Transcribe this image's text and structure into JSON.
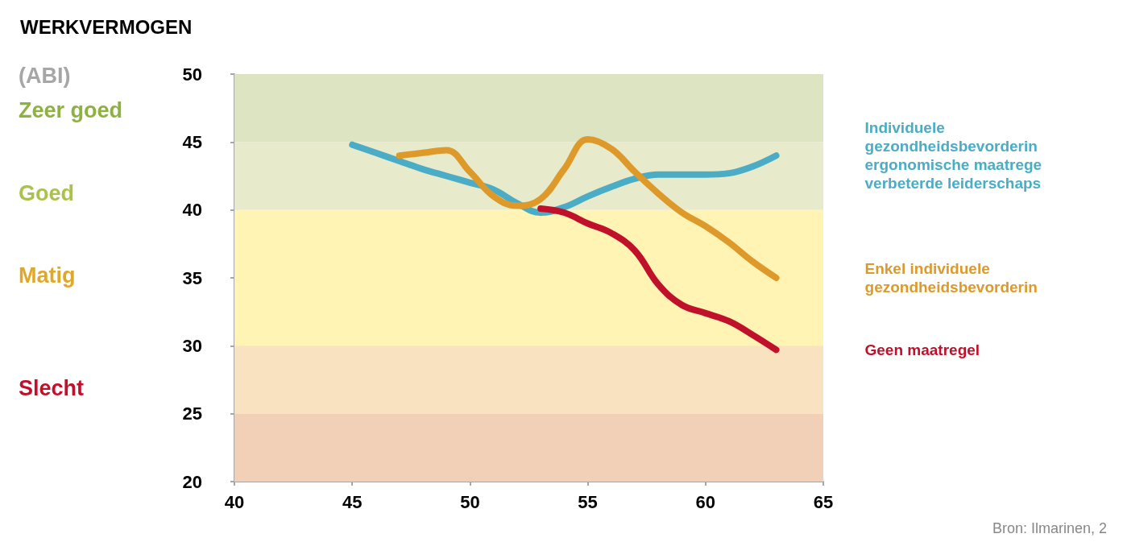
{
  "chart_data": {
    "type": "line",
    "title": "WERKVERMOGEN",
    "x": [
      45,
      46,
      47,
      48,
      49,
      50,
      51,
      52,
      53,
      54,
      55,
      56,
      57,
      58,
      59,
      60,
      61,
      62,
      63
    ],
    "series": [
      {
        "name": "Individuele\ngezondheidsbevorderin\nergonomische maatrege\nverbeterde leiderschaps",
        "color": "#4bacc6",
        "values": [
          44.8,
          44.2,
          43.6,
          43,
          42.5,
          42,
          41.5,
          40.5,
          39.8,
          40.2,
          41,
          41.7,
          42.3,
          42.6,
          42.6,
          42.6,
          42.7,
          43.2,
          44
        ]
      },
      {
        "name": "Enkel individuele\ngezondheidsbevorderin",
        "color": "#dd9a2a",
        "values": [
          null,
          null,
          44,
          44.2,
          44.4,
          42.8,
          41,
          40.3,
          40.8,
          43,
          45.2,
          44.5,
          42.8,
          41.2,
          39.8,
          38.8,
          37.6,
          36.2,
          35
        ]
      },
      {
        "name": "Geen maatregel",
        "color": "#c0102a",
        "values": [
          null,
          null,
          null,
          null,
          null,
          null,
          null,
          null,
          40.1,
          39.8,
          39,
          38.3,
          37,
          34.5,
          33,
          32.4,
          31.8,
          30.8,
          29.7
        ]
      }
    ],
    "xlim": [
      40,
      65
    ],
    "xticks": [
      40,
      45,
      50,
      55,
      60,
      65
    ],
    "ylim": [
      20,
      50
    ],
    "yticks": [
      20,
      25,
      30,
      35,
      40,
      45,
      50
    ],
    "line_style": "solid",
    "bands": [
      {
        "axis": "y",
        "from": 45,
        "to": 50,
        "color": "#dde4c1"
      },
      {
        "axis": "y",
        "from": 40,
        "to": 45,
        "color": "#e7ebcb"
      },
      {
        "axis": "y",
        "from": 30,
        "to": 40,
        "color": "#fff4b4"
      },
      {
        "axis": "y",
        "from": 25,
        "to": 30,
        "color": "#f9e2c0"
      },
      {
        "axis": "y",
        "from": 20,
        "to": 25,
        "color": "#f2d0b8"
      }
    ],
    "annotations": [
      "(ABI)",
      "Zeer goed",
      "Goed",
      "Matig",
      "Slecht",
      "Bron: Ilmarinen, 2"
    ]
  }
}
